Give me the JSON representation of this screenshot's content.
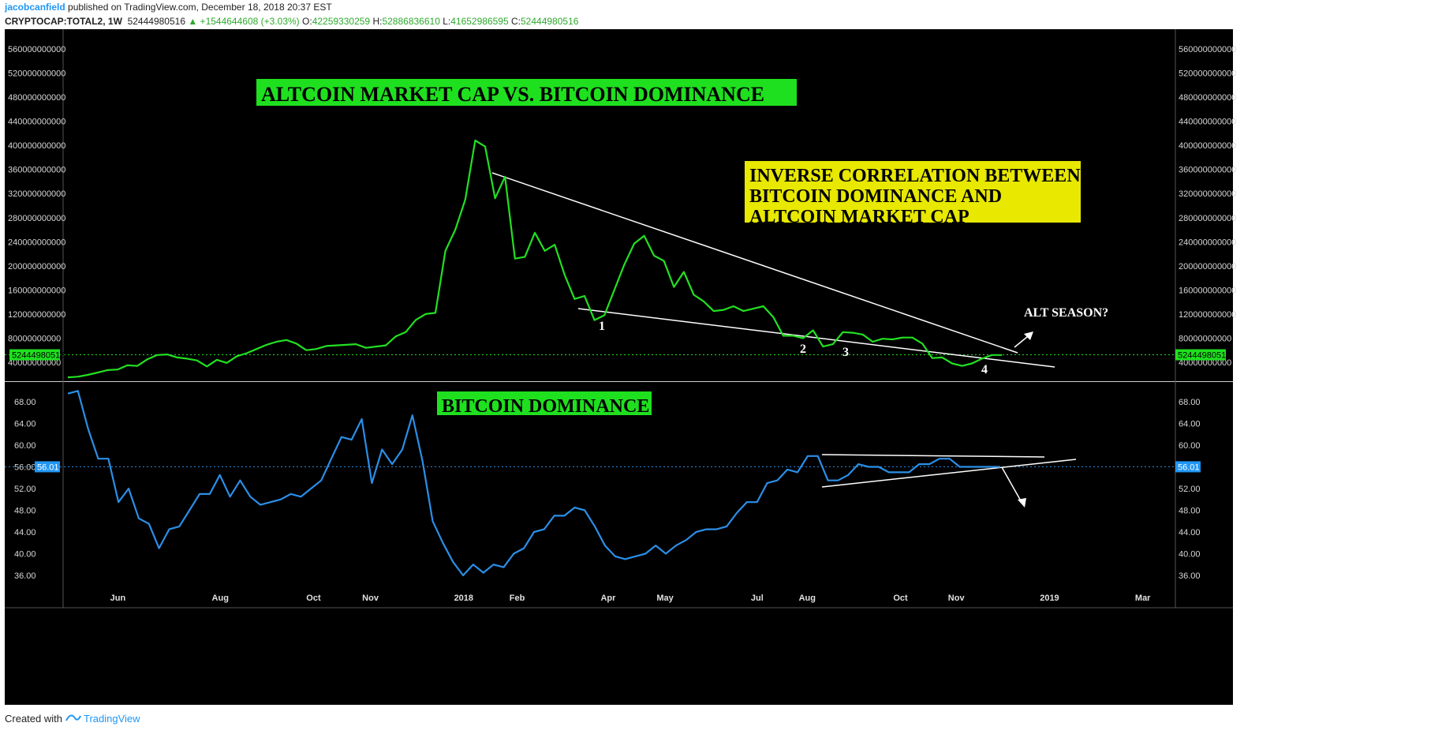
{
  "header": {
    "author": "jacobcanfield",
    "published": "published on TradingView.com, December 18, 2018 20:37 EST",
    "symbol": "CRYPTOCAP:TOTAL2, 1W",
    "last": "52444980516",
    "change": "▲ +1544644608 (+3.03%)",
    "open_label": "O:",
    "open": "42259330259",
    "high_label": "H:",
    "high": "52886836610",
    "low_label": "L:",
    "low": "41652986595",
    "close_label": "C:",
    "close": "52444980516"
  },
  "footer": {
    "created_with": "Created with",
    "brand": "TradingView"
  },
  "colors": {
    "background": "#000000",
    "altcoin_line": "#22e022",
    "dominance_line": "#2b8fe8",
    "title_box_green": "#1fe01f",
    "inverse_box_yellow": "#e8e800",
    "trendline": "#ffffff",
    "price_tag_green": "#1fe01f",
    "price_tag_blue": "#2196f3"
  },
  "chart_data": [
    {
      "type": "line",
      "name": "altcoin-market-cap",
      "series": [
        {
          "name": "CRYPTOCAP:TOTAL2"
        }
      ],
      "x_labels": [
        "Jun",
        "Aug",
        "Oct",
        "Nov",
        "2018",
        "Feb",
        "Apr",
        "May",
        "Jul",
        "Aug",
        "Oct",
        "Nov",
        "2019",
        "Mar"
      ],
      "x_label_pos": [
        4.4,
        13.4,
        21.6,
        26.6,
        34.8,
        39.5,
        47.5,
        52.5,
        60.6,
        65.0,
        73.2,
        78.1,
        86.3,
        94.5
      ],
      "x": [
        0,
        1,
        2,
        3,
        4,
        5,
        6,
        7,
        8,
        9,
        10,
        11,
        12,
        13,
        14,
        15,
        16,
        17,
        18,
        19,
        20,
        21,
        22,
        23,
        24,
        25,
        26,
        27,
        28,
        29,
        30,
        31,
        32,
        33,
        34,
        35,
        36,
        37,
        38,
        39,
        40,
        41,
        42,
        43,
        44,
        45,
        46,
        47,
        48,
        49,
        50,
        51,
        52,
        53,
        54,
        55,
        56,
        57,
        58,
        59,
        60,
        61,
        62,
        63,
        64,
        65,
        66,
        67,
        68,
        69,
        70,
        71,
        72,
        73,
        74,
        75,
        76,
        77,
        78,
        79,
        80,
        81,
        82,
        83,
        84,
        85,
        86,
        87,
        88,
        89,
        90,
        91,
        92,
        93,
        94
      ],
      "values": [
        15,
        16,
        19,
        23,
        27,
        28,
        35,
        34,
        45,
        52,
        53,
        48,
        46,
        43,
        33,
        44,
        39,
        50,
        55,
        62,
        69,
        74,
        77,
        71,
        60,
        62,
        67,
        68,
        69,
        70,
        64,
        66,
        68,
        83,
        90,
        110,
        120,
        122,
        225,
        260,
        310,
        408,
        398,
        312,
        348,
        212,
        215,
        255,
        225,
        235,
        185,
        145,
        150,
        110,
        118,
        160,
        202,
        237,
        250,
        217,
        208,
        165,
        190,
        152,
        141,
        125,
        127,
        133,
        125,
        129,
        133,
        115,
        84,
        84,
        80,
        93,
        66,
        70,
        90,
        89,
        86,
        74,
        79,
        78,
        81,
        81,
        71,
        47,
        48,
        38,
        34,
        38,
        46,
        52,
        52
      ],
      "ylim": [
        5000000000,
        580000000000
      ],
      "y_ticks": [
        "560000000000",
        "520000000000",
        "480000000000",
        "440000000000",
        "400000000000",
        "360000000000",
        "320000000000",
        "280000000000",
        "240000000000",
        "200000000000",
        "160000000000",
        "120000000000",
        "80000000000",
        "40000000000"
      ],
      "last_value": "52444980516",
      "title": "ALTCOIN MARKET CAP VS. BITCOIN DOMINANCE",
      "annotation_box": [
        "INVERSE CORRELATION BETWEEN",
        "BITCOIN DOMINANCE AND",
        "ALTCOIN MARKET CAP"
      ],
      "annotation_question": "ALT SEASON?",
      "touch_labels": [
        "1",
        "2",
        "3",
        "4"
      ]
    },
    {
      "type": "line",
      "name": "bitcoin-dominance",
      "series": [
        {
          "name": "BTC dominance"
        }
      ],
      "x": [
        0,
        1,
        2,
        3,
        4,
        5,
        6,
        7,
        8,
        9,
        10,
        11,
        12,
        13,
        14,
        15,
        16,
        17,
        18,
        19,
        20,
        21,
        22,
        23,
        24,
        25,
        26,
        27,
        28,
        29,
        30,
        31,
        32,
        33,
        34,
        35,
        36,
        37,
        38,
        39,
        40,
        41,
        42,
        43,
        44,
        45,
        46,
        47,
        48,
        49,
        50,
        51,
        52,
        53,
        54,
        55,
        56,
        57,
        58,
        59,
        60,
        61,
        62,
        63,
        64,
        65,
        66,
        67,
        68,
        69,
        70,
        71,
        72,
        73,
        74,
        75,
        76,
        77,
        78,
        79,
        80,
        81,
        82,
        83,
        84,
        85,
        86,
        87,
        88,
        89,
        90,
        91,
        92
      ],
      "values": [
        69.5,
        70.0,
        63.0,
        57.5,
        57.5,
        49.5,
        52.0,
        46.5,
        45.5,
        41.0,
        44.5,
        45.0,
        48.0,
        51.0,
        51.0,
        54.5,
        50.5,
        53.5,
        50.5,
        49.0,
        49.5,
        50.0,
        51.0,
        50.5,
        52.0,
        53.5,
        57.5,
        61.5,
        61.0,
        64.8,
        53.0,
        59.2,
        56.5,
        59.2,
        65.5,
        57.0,
        46.0,
        42.0,
        38.5,
        36.0,
        38.0,
        36.5,
        38.0,
        37.5,
        40.0,
        41.0,
        44.0,
        44.5,
        47.0,
        47.0,
        48.5,
        48.0,
        45.0,
        41.5,
        39.5,
        39.0,
        39.5,
        40.0,
        41.5,
        40.0,
        41.5,
        42.5,
        44.0,
        44.5,
        44.5,
        45.0,
        47.5,
        49.5,
        49.5,
        53.0,
        53.5,
        55.5,
        55.0,
        58.0,
        58.0,
        53.5,
        53.5,
        54.5,
        56.5,
        56.0,
        56.0,
        55.0,
        55.0,
        55.0,
        56.5,
        56.5,
        57.5,
        57.5,
        56.0,
        56.0,
        56.0,
        56.0,
        56.0
      ],
      "ylim": [
        34.0,
        70.5
      ],
      "y_ticks": [
        "68.00",
        "64.00",
        "60.00",
        "56.00",
        "52.00",
        "48.00",
        "44.00",
        "40.00",
        "36.00"
      ],
      "last_value": "56.01",
      "title": "BITCOIN DOMINANCE"
    }
  ]
}
